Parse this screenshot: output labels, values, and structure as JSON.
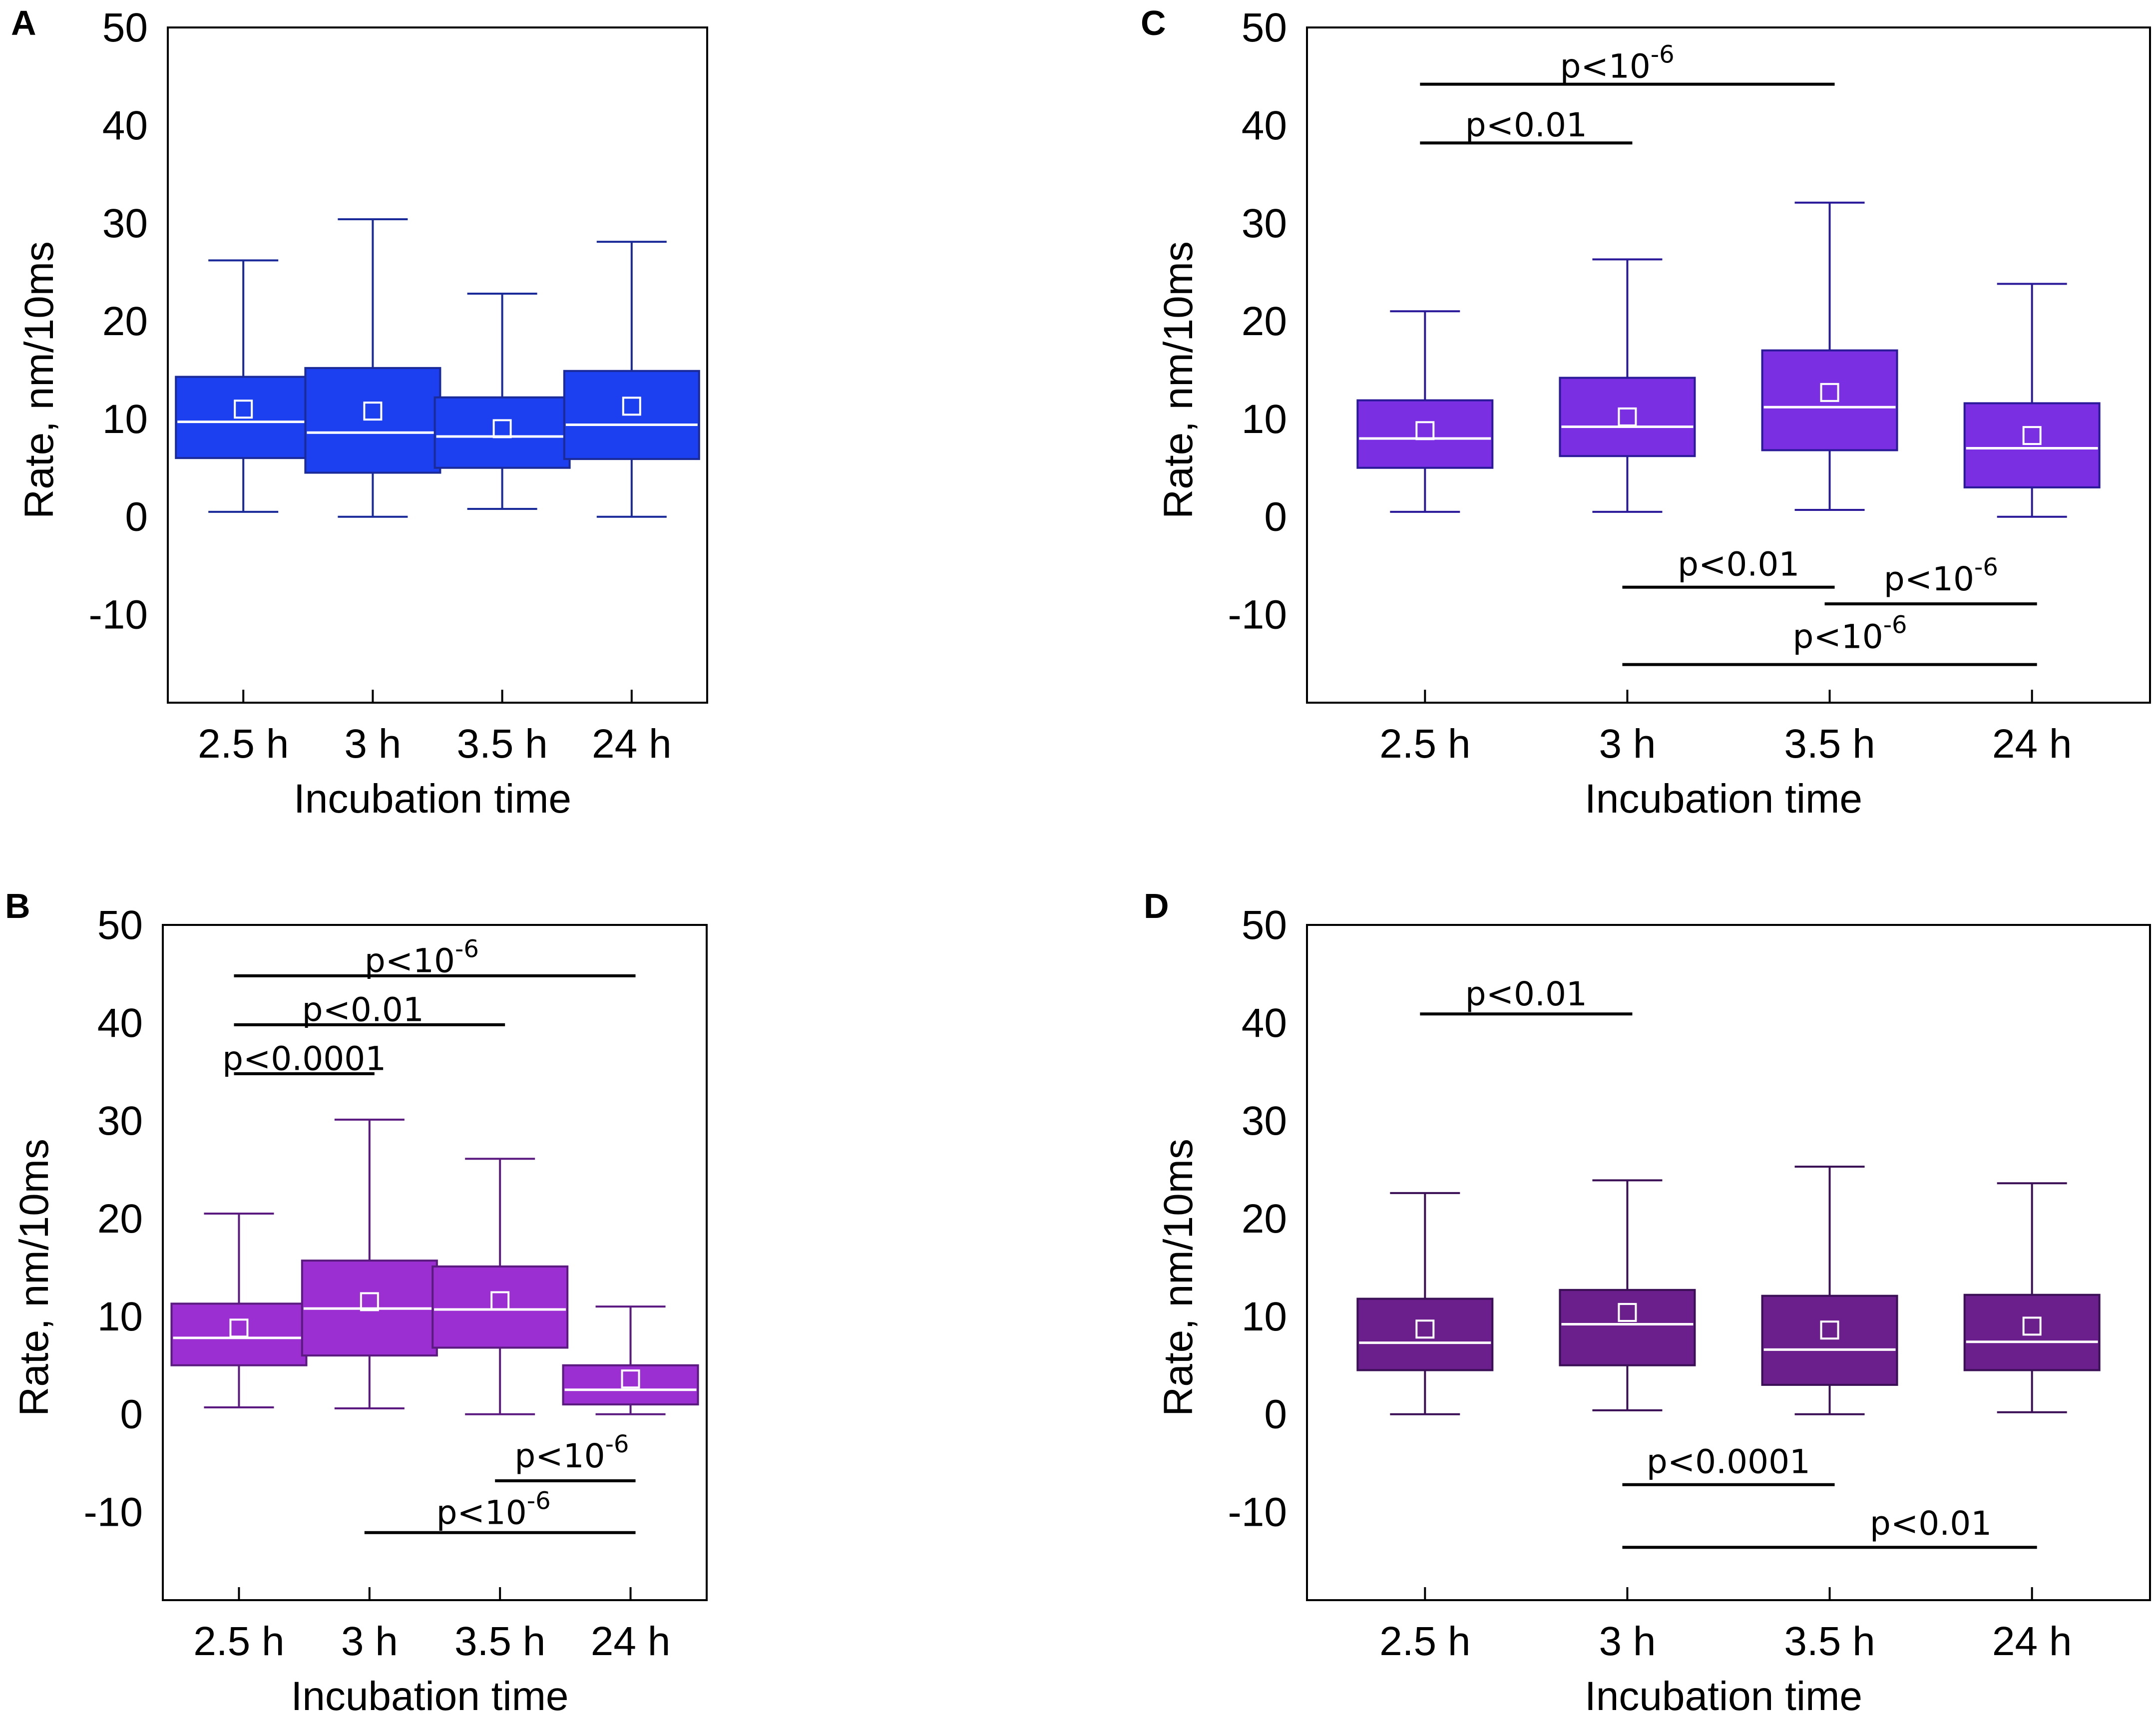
{
  "figure": {
    "panels_order": [
      "A",
      "B",
      "C",
      "D"
    ]
  },
  "chart_data": [
    {
      "panel": "A",
      "type": "box",
      "title": "",
      "xlabel": "Incubation time",
      "ylabel": "Rate, nm/10ms",
      "ylim": [
        -19,
        50
      ],
      "yticks": [
        -10,
        0,
        10,
        20,
        30,
        40,
        50
      ],
      "categories": [
        "2.5 h",
        "3 h",
        "3.5 h",
        "24 h"
      ],
      "box_color": "#1c40f0",
      "edge_color": "#1a2a99",
      "boxes": [
        {
          "min": 0.5,
          "q1": 6.0,
          "median": 9.7,
          "mean": 11.0,
          "q3": 14.3,
          "max": 26.2
        },
        {
          "min": 0.0,
          "q1": 4.5,
          "median": 8.6,
          "mean": 10.8,
          "q3": 15.2,
          "max": 30.4
        },
        {
          "min": 0.8,
          "q1": 5.0,
          "median": 8.2,
          "mean": 9.0,
          "q3": 12.2,
          "max": 22.8
        },
        {
          "min": 0.0,
          "q1": 5.9,
          "median": 9.4,
          "mean": 11.3,
          "q3": 14.9,
          "max": 28.1
        }
      ],
      "significance": []
    },
    {
      "panel": "B",
      "type": "box",
      "title": "",
      "xlabel": "Incubation time",
      "ylabel": "Rate, nm/10ms",
      "ylim": [
        -19,
        50
      ],
      "yticks": [
        -10,
        0,
        10,
        20,
        30,
        40,
        50
      ],
      "categories": [
        "2.5 h",
        "3 h",
        "3.5 h",
        "24 h"
      ],
      "box_color": "#9b2fd1",
      "edge_color": "#5a1a80",
      "boxes": [
        {
          "min": 0.7,
          "q1": 5.0,
          "median": 7.8,
          "mean": 8.8,
          "q3": 11.3,
          "max": 20.5
        },
        {
          "min": 0.6,
          "q1": 6.0,
          "median": 10.8,
          "mean": 11.5,
          "q3": 15.7,
          "max": 30.1
        },
        {
          "min": 0.0,
          "q1": 6.8,
          "median": 10.7,
          "mean": 11.6,
          "q3": 15.1,
          "max": 26.1
        },
        {
          "min": 0.0,
          "q1": 1.0,
          "median": 2.5,
          "mean": 3.6,
          "q3": 5.0,
          "max": 11.0
        }
      ],
      "significance": [
        {
          "from": 0,
          "to": 3,
          "y": 44.8,
          "base": "p<10",
          "sup": "-6",
          "label_y": 46.3,
          "label_x": 1.4
        },
        {
          "from": 0,
          "to": 2,
          "y": 39.8,
          "base": "p<0.01",
          "sup": "",
          "label_y": 41.3,
          "label_x": 0.95
        },
        {
          "from": 0,
          "to": 1,
          "y": 34.8,
          "base": "p<0.0001",
          "sup": "",
          "label_y": 36.3,
          "label_x": 0.5
        },
        {
          "from": 2,
          "to": 3,
          "y": -6.8,
          "base": "p<10",
          "sup": "-6",
          "label_y": -4.3,
          "label_x": 2.55
        },
        {
          "from": 1,
          "to": 3,
          "y": -12.1,
          "base": "p<10",
          "sup": "-6",
          "label_y": -10.1,
          "label_x": 1.95
        }
      ]
    },
    {
      "panel": "C",
      "type": "box",
      "title": "",
      "xlabel": "Incubation time",
      "ylabel": "Rate, nm/10ms",
      "ylim": [
        -19,
        50
      ],
      "yticks": [
        -10,
        0,
        10,
        20,
        30,
        40,
        50
      ],
      "categories": [
        "2.5 h",
        "3 h",
        "3.5 h",
        "24 h"
      ],
      "box_color": "#7a2fe3",
      "edge_color": "#2a1a99",
      "boxes": [
        {
          "min": 0.5,
          "q1": 5.0,
          "median": 8.0,
          "mean": 8.8,
          "q3": 11.9,
          "max": 21.0
        },
        {
          "min": 0.5,
          "q1": 6.2,
          "median": 9.2,
          "mean": 10.2,
          "q3": 14.2,
          "max": 26.3
        },
        {
          "min": 0.7,
          "q1": 6.8,
          "median": 11.2,
          "mean": 12.7,
          "q3": 17.0,
          "max": 32.1
        },
        {
          "min": 0.0,
          "q1": 3.0,
          "median": 7.0,
          "mean": 8.3,
          "q3": 11.6,
          "max": 23.8
        }
      ],
      "significance": [
        {
          "from": 0,
          "to": 2,
          "y": 44.2,
          "base": "p<10",
          "sup": "-6",
          "label_y": 46.0,
          "label_x": 0.95
        },
        {
          "from": 0,
          "to": 1,
          "y": 38.2,
          "base": "p<0.01",
          "sup": "",
          "label_y": 40.0,
          "label_x": 0.5
        },
        {
          "from": 1,
          "to": 2,
          "y": -7.2,
          "base": "p<0.01",
          "sup": "",
          "label_y": -4.9,
          "label_x": 1.55
        },
        {
          "from": 2,
          "to": 3,
          "y": -8.9,
          "base": "p<10",
          "sup": "-6",
          "label_y": -6.4,
          "label_x": 2.55
        },
        {
          "from": 1,
          "to": 3,
          "y": -15.1,
          "base": "p<10",
          "sup": "-6",
          "label_y": -12.3,
          "label_x": 2.1
        }
      ]
    },
    {
      "panel": "D",
      "type": "box",
      "title": "",
      "xlabel": "Incubation time",
      "ylabel": "Rate, nm/10ms",
      "ylim": [
        -19,
        50
      ],
      "yticks": [
        -10,
        0,
        10,
        20,
        30,
        40,
        50
      ],
      "categories": [
        "2.5 h",
        "3 h",
        "3.5 h",
        "24 h"
      ],
      "box_color": "#6a1f8c",
      "edge_color": "#3a0f55",
      "boxes": [
        {
          "min": 0.0,
          "q1": 4.5,
          "median": 7.3,
          "mean": 8.7,
          "q3": 11.8,
          "max": 22.6
        },
        {
          "min": 0.4,
          "q1": 5.0,
          "median": 9.2,
          "mean": 10.4,
          "q3": 12.7,
          "max": 23.9
        },
        {
          "min": 0.0,
          "q1": 3.0,
          "median": 6.6,
          "mean": 8.6,
          "q3": 12.1,
          "max": 25.3
        },
        {
          "min": 0.2,
          "q1": 4.5,
          "median": 7.4,
          "mean": 9.0,
          "q3": 12.2,
          "max": 23.6
        }
      ],
      "significance": [
        {
          "from": 0,
          "to": 1,
          "y": 40.9,
          "base": "p<0.01",
          "sup": "",
          "label_y": 42.9,
          "label_x": 0.5
        },
        {
          "from": 1,
          "to": 2,
          "y": -7.2,
          "base": "p<0.0001",
          "sup": "",
          "label_y": -4.9,
          "label_x": 1.5
        },
        {
          "from": 1,
          "to": 3,
          "y": -13.6,
          "base": "p<0.01",
          "sup": "",
          "label_y": -11.2,
          "label_x": 2.5
        }
      ]
    }
  ]
}
